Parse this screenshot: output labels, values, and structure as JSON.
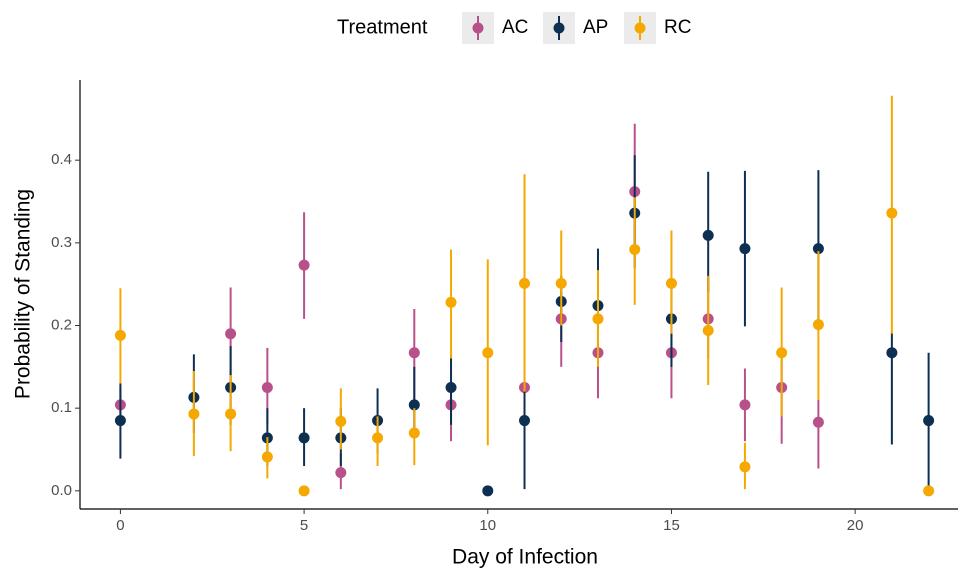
{
  "chart_data": {
    "type": "pointrange",
    "x_label": "Day of Infection",
    "y_label": "Probability of Standing",
    "legend_title": "Treatment",
    "xlim": [
      -1.1,
      22.8
    ],
    "ylim": [
      -0.022,
      0.497
    ],
    "xticks": [
      0,
      5,
      10,
      15,
      20
    ],
    "yticks": [
      {
        "value": 0,
        "label": "0.0"
      },
      {
        "value": 0.1,
        "label": "0.1"
      },
      {
        "value": 0.2,
        "label": "0.2"
      },
      {
        "value": 0.3,
        "label": "0.3"
      },
      {
        "value": 0.4,
        "label": "0.4"
      }
    ],
    "legend_position": "top",
    "series": [
      {
        "name": "AC",
        "color": "#b8508a",
        "x": [
          0,
          3,
          4,
          5,
          6,
          8,
          9,
          11,
          12,
          13,
          14,
          15,
          16,
          17,
          18,
          19
        ],
        "values": [
          0.104,
          0.19,
          0.125,
          0.273,
          0.022,
          0.167,
          0.104,
          0.125,
          0.208,
          0.167,
          0.362,
          0.167,
          0.208,
          0.104,
          0.125,
          0.083
        ],
        "lower": [
          0.085,
          0.13,
          0.08,
          0.208,
          0.002,
          0.11,
          0.06,
          0.08,
          0.15,
          0.112,
          0.29,
          0.112,
          0.16,
          0.06,
          0.057,
          0.027
        ],
        "upper": [
          0.125,
          0.246,
          0.173,
          0.337,
          0.045,
          0.22,
          0.13,
          0.17,
          0.24,
          0.21,
          0.444,
          0.21,
          0.26,
          0.148,
          0.17,
          0.11
        ]
      },
      {
        "name": "AP",
        "color": "#0d2f52",
        "x": [
          0,
          2,
          3,
          4,
          5,
          6,
          7,
          8,
          9,
          10,
          11,
          12,
          13,
          14,
          15,
          16,
          17,
          19,
          21,
          22
        ],
        "values": [
          0.085,
          0.113,
          0.125,
          0.064,
          0.064,
          0.064,
          0.085,
          0.104,
          0.125,
          0,
          0.085,
          0.229,
          0.224,
          0.336,
          0.208,
          0.309,
          0.293,
          0.293,
          0.167,
          0.085
        ],
        "lower": [
          0.039,
          0.07,
          0.08,
          0.03,
          0.03,
          0.03,
          0.045,
          0.07,
          0.08,
          0,
          0.002,
          0.18,
          0.17,
          0.27,
          0.15,
          0.24,
          0.199,
          0.2,
          0.056,
          0
        ],
        "upper": [
          0.13,
          0.165,
          0.175,
          0.1,
          0.1,
          0.1,
          0.124,
          0.15,
          0.164,
          0,
          0.12,
          0.26,
          0.293,
          0.406,
          0.25,
          0.386,
          0.387,
          0.388,
          0.192,
          0.167
        ]
      },
      {
        "name": "RC",
        "color": "#f5a800",
        "x": [
          0,
          2,
          3,
          4,
          5,
          6,
          7,
          8,
          9,
          10,
          11,
          12,
          13,
          14,
          15,
          16,
          17,
          18,
          19,
          21,
          22
        ],
        "values": [
          0.188,
          0.093,
          0.093,
          0.041,
          0,
          0.084,
          0.064,
          0.07,
          0.228,
          0.167,
          0.251,
          0.251,
          0.208,
          0.292,
          0.251,
          0.194,
          0.029,
          0.167,
          0.201,
          0.336,
          0
        ],
        "lower": [
          0.13,
          0.042,
          0.048,
          0.015,
          0,
          0.05,
          0.03,
          0.031,
          0.16,
          0.055,
          0.12,
          0.2,
          0.15,
          0.225,
          0.19,
          0.128,
          0.002,
          0.09,
          0.11,
          0.19,
          0
        ],
        "upper": [
          0.245,
          0.145,
          0.14,
          0.065,
          0,
          0.124,
          0.09,
          0.1,
          0.292,
          0.28,
          0.383,
          0.315,
          0.267,
          0.355,
          0.315,
          0.26,
          0.058,
          0.246,
          0.29,
          0.478,
          0
        ]
      }
    ]
  }
}
